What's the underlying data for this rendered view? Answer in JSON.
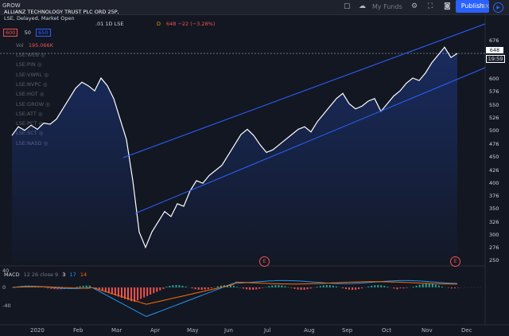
{
  "topbar": {
    "symbol_short": "GROW",
    "my_funds_label": "My Funds",
    "publish_label": "Publish",
    "currency": "GBX"
  },
  "legend": {
    "title_line1": "ALLIANZ TECHNOLOGY TRUST PLC ORD 25P,",
    "title_line2": "LSE, Delayed, Market Open",
    "title_line3_partial": ".01   1D   LSE",
    "dividend_marker": "D",
    "price_readout": "648  −22 (−3.28%)",
    "ma_a": "600",
    "ma_mid": "50",
    "ma_b": "650",
    "vol_label": "Vol",
    "vol_value": "195.066K",
    "overlays": [
      "LSE:WEB",
      "LSE:PIN",
      "LSE:VWRL",
      "LSE:NVPC",
      "LSE:HGT",
      "LSE:GROW",
      "LSE:ATT",
      "LSE:PCT",
      "LSE:SCT",
      "LSE:NASD"
    ]
  },
  "price_axis": {
    "labels": [
      "676",
      "600",
      "576",
      "550",
      "526",
      "500",
      "476",
      "450",
      "426",
      "400",
      "376",
      "350",
      "326",
      "300",
      "276",
      "250"
    ],
    "current_price_tag": "648",
    "countdown_tag": "19:59"
  },
  "time_axis": {
    "labels": [
      "2020",
      "Feb",
      "Mar",
      "Apr",
      "May",
      "Jun",
      "Jul",
      "Aug",
      "Sep",
      "Oct",
      "Nov",
      "Dec"
    ]
  },
  "macd": {
    "label": "MACD",
    "params": "12 26 close 9",
    "v1": "3",
    "v2": "17",
    "v3": "14",
    "axis": [
      "40",
      "0",
      "-40"
    ]
  },
  "earnings_badge": "E",
  "colors": {
    "background": "#131722",
    "price_line": "#ffffff",
    "channel": "#2962ff",
    "macd_line": "#2196f3",
    "signal_line": "#ff6d00",
    "hist_up": "#26a69a",
    "hist_down": "#ef5350"
  },
  "chart_data": {
    "type": "line",
    "series": [
      {
        "values": [
          488,
          505,
          498,
          508,
          500,
          512,
          510,
          520,
          540,
          560,
          580,
          592,
          585,
          575,
          600,
          585,
          560,
          520,
          480,
          400,
          300,
          270,
          300,
          320,
          340,
          330,
          355,
          350,
          380,
          400,
          395,
          410,
          420,
          430,
          450,
          470,
          490,
          500,
          488,
          470,
          455,
          460,
          470,
          480,
          490,
          500,
          505,
          495,
          515,
          530,
          545,
          560,
          570,
          550,
          540,
          545,
          555,
          560,
          535,
          550,
          565,
          575,
          590,
          600,
          595,
          610,
          630,
          645,
          660,
          640,
          648
        ]
      }
    ],
    "ylim": [
      240,
      690
    ],
    "x_labels": [
      "2020",
      "Feb",
      "Mar",
      "Apr",
      "May",
      "Jun",
      "Jul",
      "Aug",
      "Sep",
      "Oct",
      "Nov",
      "Dec"
    ],
    "current_value": 648,
    "change": -22,
    "change_pct": -3.28
  }
}
